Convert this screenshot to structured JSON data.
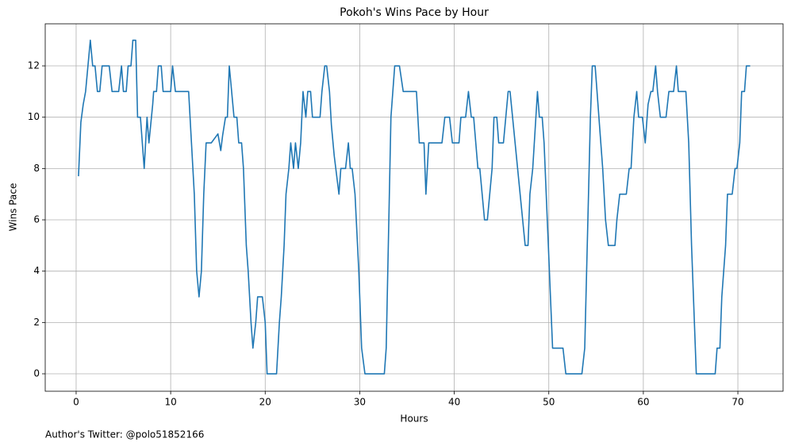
{
  "chart_data": {
    "type": "line",
    "title": "Pokoh's Wins Pace by Hour",
    "x_label": "Hours",
    "y_label": "Wins Pace",
    "annotation": "Author's Twitter: @polo51852166",
    "color": "#1f77b4",
    "grid": true,
    "xlim": [
      -3.27,
      74.78
    ],
    "ylim": [
      -0.68,
      13.64
    ],
    "xticks": [
      0,
      10,
      20,
      30,
      40,
      50,
      60,
      70
    ],
    "yticks": [
      0,
      2,
      4,
      6,
      8,
      10,
      12
    ],
    "x": [
      0.25,
      0.5,
      0.75,
      1.0,
      1.5,
      1.75,
      2.0,
      2.25,
      2.5,
      2.75,
      3.5,
      3.8,
      4.5,
      4.8,
      5.0,
      5.3,
      5.5,
      5.8,
      6.0,
      6.3,
      6.5,
      6.8,
      7.2,
      7.5,
      7.7,
      8.1,
      8.2,
      8.5,
      8.7,
      9.0,
      9.2,
      10.0,
      10.2,
      10.5,
      11.9,
      12.2,
      12.5,
      12.75,
      13.0,
      13.25,
      13.5,
      13.75,
      14.3,
      15.0,
      15.3,
      15.5,
      15.8,
      16.0,
      16.2,
      16.7,
      17.0,
      17.2,
      17.5,
      17.7,
      18.0,
      18.2,
      18.5,
      18.7,
      19.0,
      19.2,
      19.7,
      20.0,
      20.2,
      21.2,
      21.5,
      21.7,
      22.0,
      22.2,
      22.5,
      22.7,
      23.0,
      23.2,
      23.5,
      23.75,
      24.0,
      24.3,
      24.5,
      24.8,
      25.0,
      25.8,
      26.0,
      26.3,
      26.5,
      26.8,
      27.0,
      27.3,
      27.8,
      28.0,
      28.5,
      28.8,
      29.0,
      29.2,
      29.5,
      29.9,
      30.2,
      30.55,
      32.6,
      32.8,
      33.3,
      33.7,
      34.2,
      34.6,
      36.0,
      36.3,
      36.8,
      37.0,
      37.3,
      38.7,
      39.0,
      39.5,
      39.8,
      40.5,
      40.7,
      41.2,
      41.5,
      41.8,
      42.05,
      42.5,
      42.7,
      43.2,
      43.5,
      44.0,
      44.2,
      44.5,
      44.7,
      45.2,
      45.7,
      45.9,
      47.5,
      47.8,
      48.0,
      48.3,
      48.8,
      49.0,
      49.3,
      49.5,
      50.4,
      51.5,
      51.8,
      53.5,
      53.8,
      54.4,
      54.6,
      54.9,
      55.1,
      55.5,
      55.7,
      56.0,
      56.3,
      57.0,
      57.2,
      57.5,
      58.2,
      58.5,
      58.7,
      59.0,
      59.3,
      59.5,
      59.9,
      60.2,
      60.5,
      60.8,
      61.0,
      61.3,
      61.5,
      61.8,
      62.4,
      62.7,
      63.2,
      63.5,
      63.7,
      64.5,
      64.8,
      65.1,
      65.5,
      65.6,
      67.6,
      67.8,
      68.1,
      68.3,
      68.7,
      68.9,
      69.4,
      69.7,
      69.9,
      70.2,
      70.4,
      70.7,
      70.9,
      71.3
    ],
    "values": [
      7.7,
      9.8,
      10.5,
      11,
      13,
      12,
      12,
      11,
      11,
      12,
      12,
      11,
      11,
      12,
      11,
      11,
      12,
      12,
      13,
      13,
      10,
      10,
      8,
      10,
      9,
      10.5,
      11,
      11,
      12,
      12,
      11,
      11,
      12,
      11,
      11,
      9,
      7,
      4,
      3,
      4,
      7,
      9,
      9,
      9.35,
      8.7,
      9.3,
      10,
      10,
      12,
      10,
      10,
      9,
      9,
      8,
      5,
      4,
      2,
      1,
      2,
      3,
      3,
      2,
      0,
      0,
      2,
      3,
      5,
      7,
      8,
      9,
      8,
      9,
      8,
      9,
      11,
      10,
      11,
      11,
      10,
      10,
      11,
      12,
      12,
      11,
      9.7,
      8.5,
      7,
      8,
      8,
      9,
      8,
      8,
      7,
      4,
      1,
      0,
      0,
      1,
      10,
      12,
      12,
      11,
      11,
      9,
      9,
      7,
      9,
      9,
      10,
      10,
      9,
      9,
      10,
      10,
      11,
      10,
      10,
      8,
      8,
      6,
      6,
      8,
      10,
      10,
      9,
      9,
      11,
      11,
      5,
      5,
      7,
      8,
      11,
      10,
      10,
      9,
      1,
      1,
      0,
      0,
      1,
      10,
      12,
      12,
      11,
      9,
      8,
      6,
      5,
      5,
      6,
      7,
      7,
      8,
      8,
      10,
      11,
      10,
      10,
      9,
      10.5,
      11,
      11,
      12,
      11,
      10,
      10,
      11,
      11,
      12,
      11,
      11,
      9,
      5,
      1,
      0,
      0,
      1,
      1,
      3,
      5,
      7,
      7,
      8,
      8,
      9,
      11,
      11,
      12,
      12
    ]
  }
}
